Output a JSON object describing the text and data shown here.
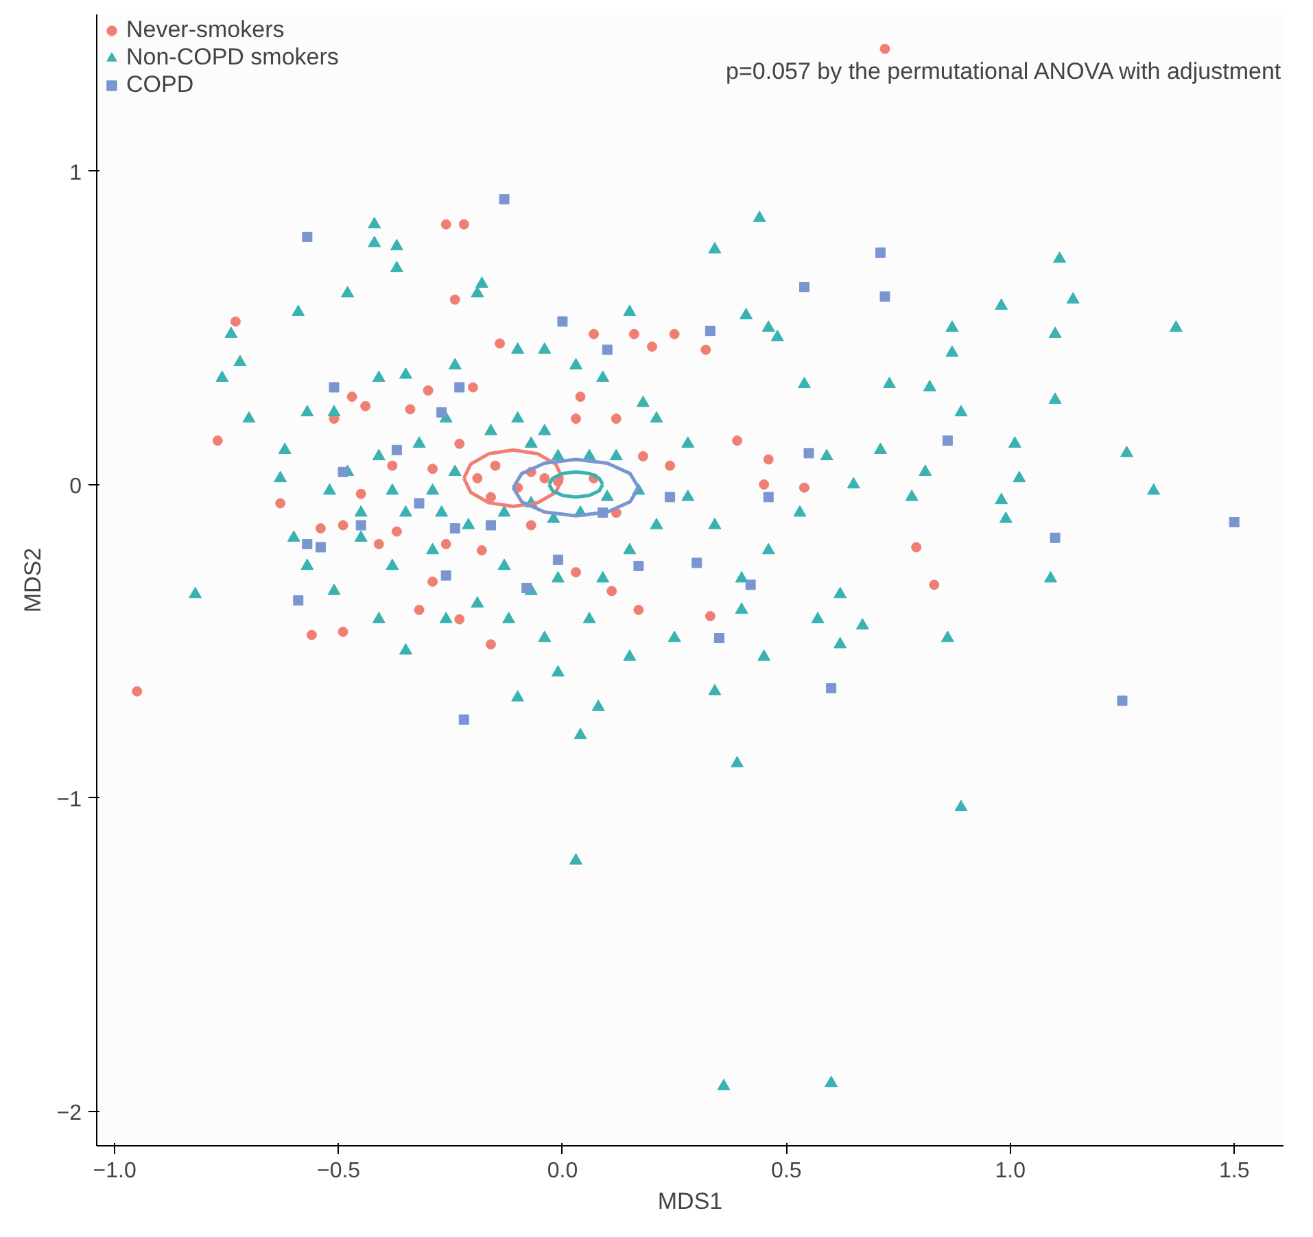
{
  "chart_data": {
    "type": "scatter",
    "xlabel": "MDS1",
    "ylabel": "MDS2",
    "annotations": [
      "p=0.057 by the permutational ANOVA with adjustment"
    ],
    "xlim": [
      -1.04,
      1.61
    ],
    "ylim": [
      -2.11,
      1.5
    ],
    "xticks": [
      {
        "value": -1,
        "label": "−1.0"
      },
      {
        "value": -0.5,
        "label": "−0.5"
      },
      {
        "value": 0,
        "label": "0.0"
      },
      {
        "value": 0.5,
        "label": "0.5"
      },
      {
        "value": 1,
        "label": "1.0"
      },
      {
        "value": 1.5,
        "label": "1.5"
      }
    ],
    "yticks": [
      {
        "value": -2,
        "label": "−2"
      },
      {
        "value": -1,
        "label": "−1"
      },
      {
        "value": 0,
        "label": "0"
      },
      {
        "value": 1,
        "label": "1"
      }
    ],
    "grid": false,
    "legend": "top left",
    "series": [
      {
        "name": "Never-smokers",
        "color": "#f07f73",
        "marker": "circle",
        "x": [
          0.72,
          -0.26,
          -0.22,
          -0.73,
          -0.24,
          -0.77,
          -0.95,
          0.79,
          0.83,
          0.07,
          0.16,
          0.2,
          0.25,
          0.32,
          0.04,
          -0.14,
          -0.2,
          -0.47,
          -0.44,
          -0.51,
          -0.34,
          -0.3,
          -0.56,
          -0.49,
          -0.32,
          -0.23,
          -0.16,
          -0.29,
          0.11,
          0.17,
          0.33,
          0.46,
          0.45,
          0.39,
          0.54,
          -0.45,
          -0.54,
          -0.49,
          -0.41,
          -0.37,
          -0.15,
          -0.1,
          -0.07,
          -0.04,
          -0.16,
          -0.19,
          -0.01,
          0.07,
          0.12,
          0.18,
          0.24,
          -0.23,
          -0.29,
          -0.26,
          -0.18,
          -0.07,
          0.03,
          0.12,
          0.03,
          -0.63,
          -0.38
        ],
        "values": [
          1.39,
          0.83,
          0.83,
          0.52,
          0.59,
          0.14,
          -0.66,
          -0.2,
          -0.32,
          0.48,
          0.48,
          0.44,
          0.48,
          0.43,
          0.28,
          0.45,
          0.31,
          0.28,
          0.25,
          0.21,
          0.24,
          0.3,
          -0.48,
          -0.47,
          -0.4,
          -0.43,
          -0.51,
          -0.31,
          -0.34,
          -0.4,
          -0.42,
          0.08,
          0.0,
          0.14,
          -0.01,
          -0.03,
          -0.14,
          -0.13,
          -0.19,
          -0.15,
          0.06,
          -0.01,
          0.04,
          0.02,
          -0.04,
          0.02,
          0.01,
          0.02,
          -0.09,
          0.09,
          0.06,
          0.13,
          0.05,
          -0.19,
          -0.21,
          -0.13,
          -0.28,
          0.21,
          0.21,
          -0.06,
          0.06
        ]
      },
      {
        "name": "Non-COPD smokers",
        "color": "#3ab2b2",
        "marker": "triangle",
        "x": [
          -0.42,
          0.44,
          0.34,
          -0.42,
          -0.37,
          -0.37,
          -0.59,
          -0.48,
          -0.18,
          -0.19,
          -0.74,
          -0.72,
          -0.76,
          -0.7,
          -0.82,
          1.11,
          1.14,
          1.37,
          0.98,
          1.1,
          0.87,
          0.87,
          0.15,
          0.41,
          0.46,
          0.48,
          0.82,
          0.89,
          1.1,
          0.54,
          0.73,
          1.26,
          1.32,
          1.01,
          1.02,
          0.98,
          0.99,
          1.09,
          0.86,
          0.89,
          0.39,
          0.03,
          0.36,
          0.6,
          0.34,
          0.04,
          0.08,
          -0.1,
          -0.01,
          0.25,
          0.62,
          0.57,
          0.67,
          0.62,
          0.78,
          0.81,
          0.71,
          0.65,
          0.59,
          0.53,
          0.46,
          0.4,
          0.34,
          0.28,
          0.21,
          0.28,
          0.21,
          0.15,
          0.09,
          -0.01,
          -0.07,
          -0.13,
          -0.19,
          -0.26,
          -0.35,
          -0.41,
          -0.51,
          -0.57,
          -0.6,
          -0.62,
          -0.63,
          -0.57,
          -0.51,
          -0.41,
          -0.35,
          -0.24,
          -0.1,
          -0.04,
          0.03,
          0.09,
          0.18,
          -0.1,
          -0.04,
          -0.16,
          -0.26,
          -0.32,
          -0.41,
          -0.48,
          -0.52,
          -0.45,
          -0.35,
          -0.27,
          -0.21,
          -0.13,
          -0.07,
          -0.02,
          0.04,
          0.1,
          0.17,
          0.12,
          0.06,
          -0.01,
          -0.07,
          -0.24,
          -0.29,
          -0.38,
          0.45,
          0.4,
          -0.29,
          -0.38,
          -0.45,
          -0.12,
          -0.04,
          0.06,
          0.15
        ],
        "values": [
          0.83,
          0.85,
          0.75,
          0.77,
          0.76,
          0.69,
          0.55,
          0.61,
          0.64,
          0.61,
          0.48,
          0.39,
          0.34,
          0.21,
          -0.35,
          0.72,
          0.59,
          0.5,
          0.57,
          0.48,
          0.5,
          0.42,
          0.55,
          0.54,
          0.5,
          0.47,
          0.31,
          0.23,
          0.27,
          0.32,
          0.32,
          0.1,
          -0.02,
          0.13,
          0.02,
          -0.05,
          -0.11,
          -0.3,
          -0.49,
          -1.03,
          -0.89,
          -1.2,
          -1.92,
          -1.91,
          -0.66,
          -0.8,
          -0.71,
          -0.68,
          -0.6,
          -0.49,
          -0.51,
          -0.43,
          -0.45,
          -0.35,
          -0.04,
          0.04,
          0.11,
          0.0,
          0.09,
          -0.09,
          -0.21,
          -0.3,
          -0.13,
          0.13,
          0.21,
          -0.04,
          -0.13,
          -0.21,
          -0.3,
          -0.3,
          -0.34,
          -0.26,
          -0.38,
          -0.43,
          -0.53,
          -0.43,
          -0.34,
          -0.26,
          -0.17,
          0.11,
          0.02,
          0.23,
          0.23,
          0.34,
          0.35,
          0.38,
          0.43,
          0.43,
          0.38,
          0.34,
          0.26,
          0.21,
          0.17,
          0.17,
          0.21,
          0.13,
          0.09,
          0.04,
          -0.02,
          -0.09,
          -0.09,
          -0.09,
          -0.13,
          -0.09,
          -0.06,
          -0.11,
          -0.09,
          -0.04,
          -0.02,
          0.09,
          0.09,
          0.09,
          0.13,
          0.04,
          -0.02,
          -0.02,
          -0.55,
          -0.4,
          -0.21,
          -0.26,
          -0.17,
          -0.43,
          -0.49,
          -0.43,
          -0.55
        ]
      },
      {
        "name": "COPD",
        "color": "#7a96d0",
        "marker": "square",
        "x": [
          -0.13,
          -0.57,
          0.71,
          0.72,
          0.54,
          0.0,
          0.33,
          0.1,
          -0.51,
          -0.23,
          -0.27,
          0.86,
          0.55,
          1.5,
          1.1,
          1.25,
          0.6,
          -0.22,
          -0.59,
          -0.57,
          -0.54,
          -0.49,
          -0.45,
          -0.32,
          -0.26,
          -0.08,
          0.17,
          0.3,
          0.42,
          0.35,
          -0.01,
          0.09,
          -0.16,
          -0.37,
          -0.24,
          0.24,
          0.46
        ],
        "values": [
          0.91,
          0.79,
          0.74,
          0.6,
          0.63,
          0.52,
          0.49,
          0.43,
          0.31,
          0.31,
          0.23,
          0.14,
          0.1,
          -0.12,
          -0.17,
          -0.69,
          -0.65,
          -0.75,
          -0.37,
          -0.19,
          -0.2,
          0.04,
          -0.13,
          -0.06,
          -0.29,
          -0.33,
          -0.26,
          -0.25,
          -0.32,
          -0.49,
          -0.24,
          -0.09,
          -0.13,
          0.11,
          -0.14,
          -0.04,
          -0.04
        ]
      },
      {
        "type": "line",
        "color": "#f07f73",
        "x": [
          0.0,
          -0.015,
          -0.055,
          -0.11,
          -0.165,
          -0.205,
          -0.22
        ],
        "values": [
          0.02,
          0.065,
          0.098,
          0.11,
          0.098,
          0.065,
          0.02
        ]
      },
      {
        "type": "line",
        "color": "#f07f73",
        "x": [
          -0.22,
          -0.205,
          -0.165,
          -0.11,
          -0.055,
          -0.015,
          0.0
        ],
        "values": [
          0.02,
          -0.025,
          -0.058,
          -0.07,
          -0.058,
          -0.025,
          0.02
        ]
      },
      {
        "type": "line",
        "color": "#7a96d0",
        "x": [
          0.17,
          0.151,
          0.1,
          0.03,
          -0.04,
          -0.091,
          -0.11
        ],
        "values": [
          -0.01,
          0.035,
          0.068,
          0.08,
          0.068,
          0.035,
          -0.01
        ]
      },
      {
        "type": "line",
        "color": "#7a96d0",
        "x": [
          -0.11,
          -0.091,
          -0.04,
          0.03,
          0.1,
          0.151,
          0.17
        ],
        "values": [
          -0.01,
          -0.055,
          -0.088,
          -0.1,
          -0.088,
          -0.055,
          -0.01
        ]
      },
      {
        "type": "line",
        "color": "#3ab2b2",
        "x": [
          0.09,
          0.082,
          0.06,
          0.03,
          0.0,
          -0.022,
          -0.03
        ],
        "values": [
          0,
          0.02,
          0.035,
          0.04,
          0.035,
          0.02,
          0
        ]
      },
      {
        "type": "line",
        "color": "#3ab2b2",
        "x": [
          -0.03,
          -0.022,
          0.0,
          0.03,
          0.06,
          0.082,
          0.09
        ],
        "values": [
          0,
          -0.02,
          -0.035,
          -0.04,
          -0.035,
          -0.02,
          0
        ]
      }
    ]
  }
}
